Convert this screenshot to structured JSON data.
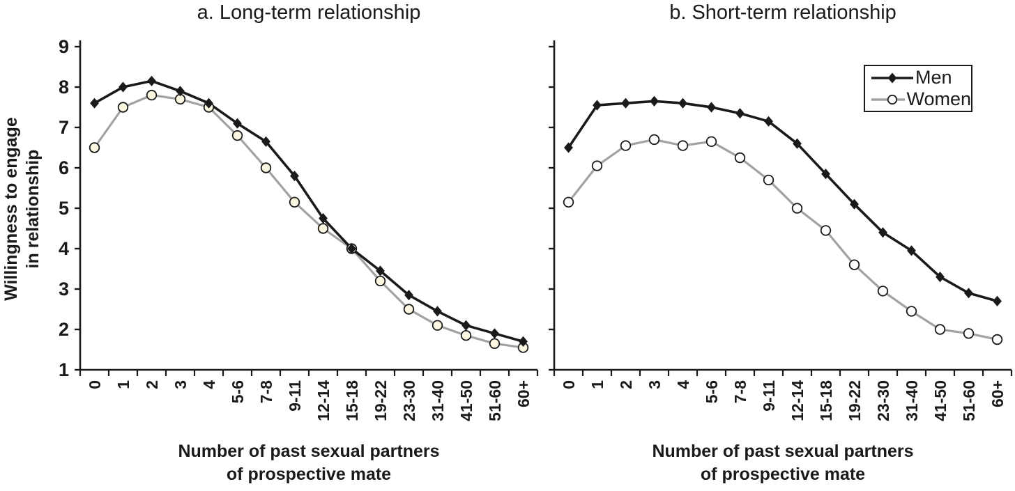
{
  "figure": {
    "ylabel_line1": "Willingness to engage",
    "ylabel_line2": "in relationship",
    "xlabel_line1": "Number of past sexual partners",
    "xlabel_line2": "of prospective mate"
  },
  "legend": {
    "position": "top-right of panel b",
    "items": [
      {
        "label": "Men",
        "marker": "diamond",
        "line_color": "#1a1a1a",
        "marker_fill": "#1a1a1a"
      },
      {
        "label": "Women",
        "marker": "circle",
        "line_color": "#a2a2a2",
        "marker_fill": "#ffffff"
      }
    ]
  },
  "chart_data": [
    {
      "type": "line",
      "panel": "a",
      "title": "a. Long-term relationship",
      "xlabel": "Number of past sexual partners of prospective mate",
      "ylabel": "Willingness to engage in relationship",
      "ylim": [
        1,
        9
      ],
      "yticks": [
        1,
        2,
        3,
        4,
        5,
        6,
        7,
        8,
        9
      ],
      "ytick_labels_visible": true,
      "grid": false,
      "categories": [
        "0",
        "1",
        "2",
        "3",
        "4",
        "5-6",
        "7-8",
        "9-11",
        "12-14",
        "15-18",
        "19-22",
        "23-30",
        "31-40",
        "41-50",
        "51-60",
        "60+"
      ],
      "series": [
        {
          "name": "Men",
          "marker": "diamond",
          "line_color": "#1a1a1a",
          "marker_fill": "#1a1a1a",
          "values": [
            7.6,
            8.0,
            8.15,
            7.9,
            7.6,
            7.1,
            6.65,
            5.8,
            4.75,
            4.0,
            3.45,
            2.85,
            2.45,
            2.1,
            1.9,
            1.7
          ]
        },
        {
          "name": "Women",
          "marker": "circle",
          "line_color": "#a2a2a2",
          "marker_fill": "#fbf7e0",
          "values": [
            6.5,
            7.5,
            7.8,
            7.7,
            7.5,
            6.8,
            6.0,
            5.15,
            4.5,
            4.0,
            3.2,
            2.5,
            2.1,
            1.85,
            1.65,
            1.55
          ]
        }
      ]
    },
    {
      "type": "line",
      "panel": "b",
      "title": "b. Short-term relationship",
      "xlabel": "Number of past sexual partners of prospective mate",
      "ylabel": "Willingness to engage in relationship",
      "ylim": [
        1,
        9
      ],
      "yticks": [
        1,
        2,
        3,
        4,
        5,
        6,
        7,
        8,
        9
      ],
      "ytick_labels_visible": false,
      "grid": false,
      "categories": [
        "0",
        "1",
        "2",
        "3",
        "4",
        "5-6",
        "7-8",
        "9-11",
        "12-14",
        "15-18",
        "19-22",
        "23-30",
        "31-40",
        "41-50",
        "51-60",
        "60+"
      ],
      "series": [
        {
          "name": "Men",
          "marker": "diamond",
          "line_color": "#1a1a1a",
          "marker_fill": "#1a1a1a",
          "values": [
            6.5,
            7.55,
            7.6,
            7.65,
            7.6,
            7.5,
            7.35,
            7.15,
            6.6,
            5.85,
            5.1,
            4.4,
            3.95,
            3.3,
            2.9,
            2.7
          ]
        },
        {
          "name": "Women",
          "marker": "circle",
          "line_color": "#a2a2a2",
          "marker_fill": "#ffffff",
          "values": [
            5.15,
            6.05,
            6.55,
            6.7,
            6.55,
            6.65,
            6.25,
            5.7,
            5.0,
            4.45,
            3.6,
            2.95,
            2.45,
            2.0,
            1.9,
            1.75
          ]
        }
      ]
    }
  ]
}
